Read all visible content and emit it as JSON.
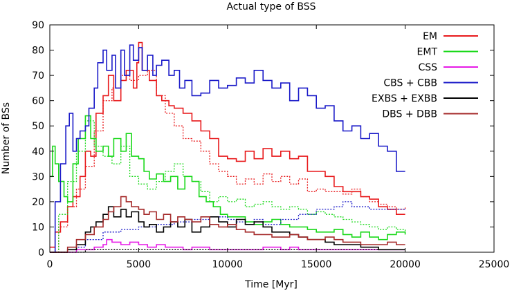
{
  "chart_data": {
    "type": "line",
    "title": "Actual type of BSS",
    "xlabel": "Time [Myr]",
    "ylabel": "Number of BSs",
    "xlim": [
      0,
      25000
    ],
    "ylim": [
      0,
      90
    ],
    "xticks": [
      0,
      5000,
      10000,
      15000,
      20000,
      25000
    ],
    "yticks": [
      0,
      10,
      20,
      30,
      40,
      50,
      60,
      70,
      80,
      90
    ],
    "legend_position": "top-right",
    "grid": false,
    "series": [
      {
        "name": "EM",
        "color": "#e8191b",
        "x": [
          0,
          300,
          600,
          1000,
          1300,
          1700,
          2000,
          2300,
          2600,
          3000,
          3300,
          3600,
          4000,
          4300,
          4700,
          4900,
          5000,
          5200,
          5600,
          6000,
          6300,
          6700,
          7000,
          7500,
          8000,
          8500,
          9000,
          9500,
          10000,
          10500,
          11000,
          11500,
          12000,
          12500,
          13000,
          13500,
          14000,
          14500,
          15000,
          15500,
          16000,
          16500,
          17000,
          17500,
          18000,
          18500,
          19000,
          19500,
          20000
        ],
        "values": [
          2,
          8,
          12,
          18,
          22,
          30,
          40,
          38,
          55,
          62,
          70,
          60,
          68,
          72,
          65,
          75,
          83,
          72,
          68,
          62,
          60,
          58,
          57,
          55,
          52,
          48,
          45,
          38,
          37,
          36,
          40,
          37,
          41,
          38,
          40,
          37,
          38,
          32,
          32,
          30,
          26,
          24,
          24,
          22,
          21,
          18,
          17,
          15,
          15
        ]
      },
      {
        "name": "EM (dotted)",
        "color": "#e8191b",
        "dashed": true,
        "x": [
          0,
          500,
          1000,
          1500,
          2000,
          2500,
          3000,
          3500,
          4000,
          4500,
          5000,
          5500,
          6000,
          6500,
          7000,
          7500,
          8000,
          8500,
          9000,
          9500,
          10000,
          10500,
          11000,
          11500,
          12000,
          12500,
          13000,
          13500,
          14000,
          14500,
          15000,
          15500,
          16000,
          16500,
          17000,
          17500,
          18000,
          18500,
          19000,
          19500,
          20000
        ],
        "values": [
          0,
          10,
          18,
          25,
          34,
          48,
          60,
          65,
          70,
          68,
          70,
          72,
          62,
          55,
          50,
          45,
          44,
          40,
          35,
          32,
          30,
          27,
          29,
          27,
          31,
          28,
          30,
          27,
          29,
          24,
          25,
          24,
          24,
          23,
          25,
          22,
          20,
          19,
          18,
          17,
          18
        ]
      },
      {
        "name": "EMT",
        "color": "#19d819",
        "x": [
          0,
          150,
          300,
          500,
          800,
          1000,
          1300,
          1600,
          2000,
          2300,
          2600,
          3000,
          3300,
          3600,
          4000,
          4300,
          4600,
          5000,
          5300,
          5600,
          6000,
          6400,
          6800,
          7200,
          7600,
          8000,
          8400,
          8800,
          9200,
          9600,
          10000,
          10500,
          11000,
          11500,
          12000,
          12500,
          13000,
          13500,
          14000,
          14500,
          15000,
          15500,
          16000,
          16500,
          17000,
          17500,
          18000,
          18500,
          19000,
          19500,
          20000
        ],
        "values": [
          30,
          42,
          35,
          28,
          22,
          20,
          35,
          45,
          54,
          45,
          40,
          42,
          38,
          45,
          40,
          47,
          38,
          37,
          32,
          29,
          31,
          28,
          30,
          25,
          30,
          28,
          22,
          20,
          18,
          15,
          14,
          14,
          12,
          11,
          12,
          13,
          11,
          10,
          10,
          9,
          8,
          8,
          9,
          7,
          6,
          8,
          6,
          5,
          7,
          8,
          7
        ]
      },
      {
        "name": "EMT (dotted)",
        "color": "#19d819",
        "dashed": true,
        "x": [
          0,
          500,
          1000,
          1500,
          2000,
          2500,
          3000,
          3500,
          4000,
          4500,
          5000,
          5500,
          6000,
          6500,
          7000,
          7500,
          8000,
          8500,
          9000,
          9500,
          10000,
          10500,
          11000,
          11500,
          12000,
          12500,
          13000,
          13500,
          14000,
          14500,
          15000,
          15500,
          16000,
          16500,
          17000,
          17500,
          18000,
          18500,
          19000,
          19500,
          20000
        ],
        "values": [
          0,
          15,
          28,
          40,
          52,
          42,
          38,
          35,
          42,
          30,
          27,
          25,
          28,
          32,
          35,
          30,
          28,
          24,
          20,
          22,
          20,
          21,
          18,
          19,
          20,
          18,
          17,
          18,
          17,
          15,
          16,
          15,
          14,
          13,
          12,
          11,
          10,
          9,
          10,
          9,
          8
        ]
      },
      {
        "name": "CSS",
        "color": "#e619e6",
        "x": [
          0,
          500,
          1000,
          1500,
          2000,
          2500,
          3000,
          3200,
          3500,
          4000,
          4500,
          5000,
          5500,
          6000,
          6500,
          7000,
          7500,
          8000,
          9000,
          10000,
          11000,
          12000,
          13000,
          13500,
          14000,
          15000,
          16000,
          17000,
          18000,
          19000,
          20000
        ],
        "values": [
          0,
          0,
          0,
          1,
          1,
          2,
          3,
          5,
          4,
          3,
          4,
          3,
          2,
          3,
          2,
          2,
          1,
          2,
          1,
          1,
          1,
          2,
          1,
          2,
          1,
          1,
          1,
          1,
          1,
          1,
          1
        ]
      },
      {
        "name": "CBS + CBB",
        "color": "#1919c8",
        "x": [
          0,
          300,
          600,
          900,
          1100,
          1300,
          1500,
          1700,
          2000,
          2200,
          2500,
          2700,
          3000,
          3200,
          3500,
          3700,
          4000,
          4200,
          4500,
          4700,
          5000,
          5200,
          5500,
          5800,
          6000,
          6300,
          6700,
          7000,
          7300,
          7600,
          8000,
          8500,
          9000,
          9500,
          10000,
          10500,
          11000,
          11500,
          12000,
          12500,
          13000,
          13500,
          14000,
          14500,
          15000,
          15500,
          16000,
          16500,
          17000,
          17500,
          18000,
          18500,
          19000,
          19500,
          20000
        ],
        "values": [
          0,
          20,
          35,
          50,
          55,
          40,
          45,
          48,
          50,
          57,
          65,
          75,
          80,
          72,
          78,
          65,
          80,
          70,
          82,
          76,
          81,
          72,
          78,
          70,
          74,
          76,
          70,
          72,
          65,
          68,
          62,
          63,
          68,
          65,
          66,
          69,
          67,
          72,
          68,
          65,
          67,
          60,
          65,
          62,
          57,
          58,
          52,
          48,
          50,
          45,
          47,
          42,
          40,
          32,
          32
        ]
      },
      {
        "name": "CBS + CBB (dotted)",
        "color": "#1919c8",
        "dashed": true,
        "x": [
          0,
          1000,
          2000,
          3000,
          4000,
          5000,
          6000,
          7000,
          8000,
          9000,
          10000,
          10500,
          11000,
          11500,
          12000,
          13000,
          14000,
          15000,
          16000,
          16500,
          17000,
          18000,
          19000,
          20000
        ],
        "values": [
          0,
          2,
          5,
          8,
          9,
          10,
          11,
          12,
          13,
          14,
          13,
          12,
          11,
          13,
          11,
          13,
          15,
          17,
          18,
          20,
          18,
          17,
          17,
          17
        ]
      },
      {
        "name": "EXBS + EXBB",
        "color": "#000000",
        "x": [
          0,
          500,
          1000,
          1500,
          2000,
          2300,
          2600,
          3000,
          3300,
          3600,
          4000,
          4300,
          4600,
          5000,
          5300,
          5600,
          6000,
          6400,
          6800,
          7200,
          7600,
          8000,
          8500,
          9000,
          9500,
          10000,
          10500,
          11000,
          11500,
          12000,
          12500,
          13000,
          13500,
          14000,
          14500,
          15000,
          15500,
          16000,
          16500,
          17000,
          17500,
          18000,
          18500,
          19000,
          19500,
          20000
        ],
        "values": [
          0,
          0,
          1,
          3,
          8,
          10,
          12,
          15,
          18,
          14,
          17,
          14,
          16,
          12,
          10,
          11,
          8,
          10,
          12,
          10,
          13,
          8,
          10,
          14,
          12,
          10,
          13,
          11,
          12,
          10,
          8,
          8,
          7,
          6,
          5,
          5,
          4,
          3,
          3,
          3,
          2,
          2,
          1,
          1,
          1,
          1
        ]
      },
      {
        "name": "EXBS + EXBB (dotted)",
        "color": "#000000",
        "dashed": true,
        "x": [
          0,
          1000,
          2000,
          3000,
          4000,
          5000,
          6000,
          7000,
          8000,
          9000,
          10000,
          11000,
          12000,
          13000,
          14000,
          15000,
          16000,
          17000,
          18000,
          19000,
          20000
        ],
        "values": [
          0,
          0,
          1,
          1,
          1,
          1,
          1,
          1,
          1,
          1,
          1,
          1,
          1,
          1,
          1,
          1,
          1,
          1,
          1,
          1,
          1
        ]
      },
      {
        "name": "DBS + DBB",
        "color": "#a52a2a",
        "x": [
          0,
          500,
          1000,
          1500,
          2000,
          2500,
          3000,
          3300,
          3600,
          4000,
          4300,
          4600,
          5000,
          5300,
          5600,
          6000,
          6400,
          6800,
          7200,
          7600,
          8000,
          8500,
          9000,
          9500,
          10000,
          10500,
          11000,
          11500,
          12000,
          12500,
          13000,
          13500,
          14000,
          14500,
          15000,
          15500,
          16000,
          16500,
          17000,
          17500,
          18000,
          18500,
          19000,
          19500,
          20000
        ],
        "values": [
          0,
          0,
          2,
          5,
          7,
          10,
          13,
          16,
          18,
          22,
          20,
          18,
          17,
          15,
          16,
          13,
          15,
          12,
          14,
          13,
          12,
          14,
          11,
          10,
          11,
          9,
          8,
          7,
          7,
          6,
          6,
          7,
          6,
          5,
          5,
          6,
          5,
          4,
          4,
          3,
          3,
          3,
          4,
          3,
          3
        ]
      }
    ]
  },
  "legend": [
    {
      "label": "EM",
      "color": "#e8191b"
    },
    {
      "label": "EMT",
      "color": "#19d819"
    },
    {
      "label": "CSS",
      "color": "#e619e6"
    },
    {
      "label": "CBS + CBB",
      "color": "#1919c8"
    },
    {
      "label": "EXBS + EXBB",
      "color": "#000000"
    },
    {
      "label": "DBS + DBB",
      "color": "#a52a2a"
    }
  ]
}
